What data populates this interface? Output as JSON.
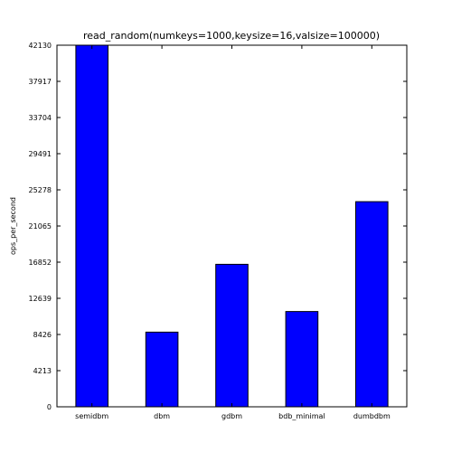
{
  "chart_data": {
    "type": "bar",
    "title": "read_random(numkeys=1000,keysize=16,valsize=100000)",
    "xlabel": "",
    "ylabel": "ops_per_second",
    "categories": [
      "semidbm",
      "dbm",
      "gdbm",
      "bdb_minimal",
      "dumbdbm"
    ],
    "values": [
      42130,
      8700,
      16600,
      11100,
      23900
    ],
    "yticks": [
      0,
      4213,
      8426,
      12639,
      16852,
      21065,
      25278,
      29491,
      33704,
      37917,
      42130
    ],
    "ylim": [
      0,
      42130
    ],
    "grid": false,
    "legend": "none",
    "bar_color": "#0000ff",
    "edge_color": "#000000"
  }
}
